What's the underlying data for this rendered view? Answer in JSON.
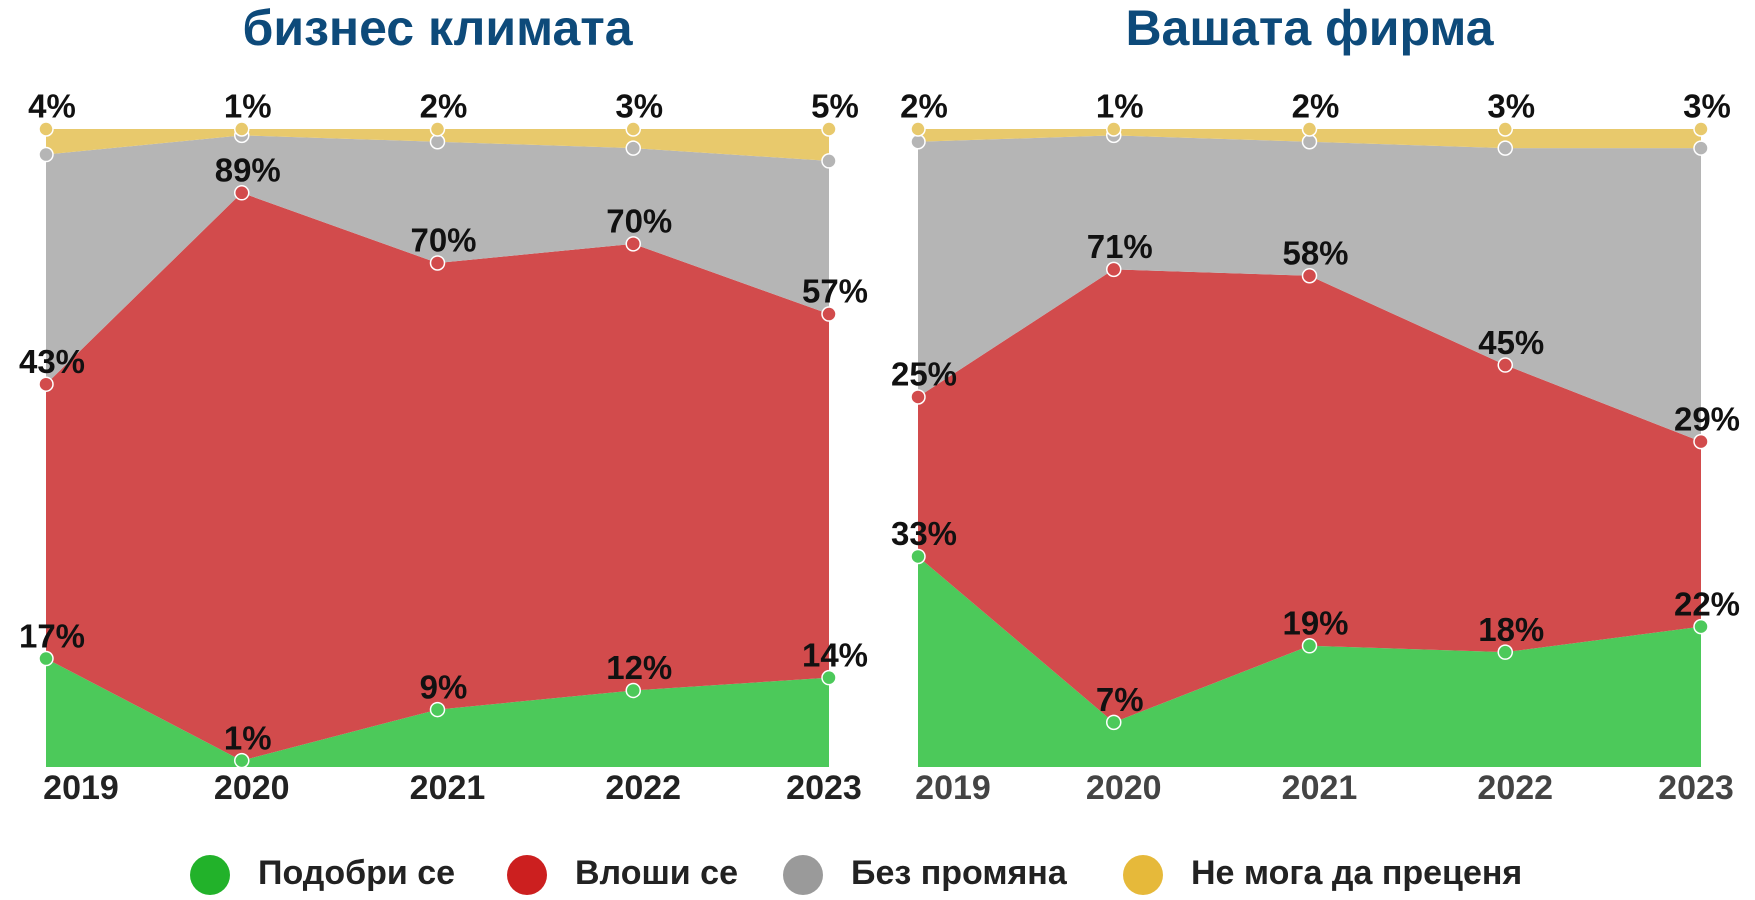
{
  "chart_data": [
    {
      "type": "stacked-area",
      "title": "бизнес климата",
      "categories": [
        "2019",
        "2020",
        "2021",
        "2022",
        "2023"
      ],
      "series": [
        {
          "name": "Подобри се",
          "color": "#4cc95a",
          "values": [
            17,
            1,
            9,
            12,
            14
          ],
          "value_labels": [
            "17%",
            "1%",
            "9%",
            "12%",
            "14%"
          ]
        },
        {
          "name": "Влоши се",
          "color": "#d24b4c",
          "values": [
            43,
            89,
            70,
            70,
            57
          ],
          "value_labels": [
            "43%",
            "89%",
            "70%",
            "70%",
            "57%"
          ]
        },
        {
          "name": "Без промяна",
          "color": "#b5b5b5",
          "values": [
            36,
            9,
            19,
            15,
            24
          ]
        },
        {
          "name": "Не мога да преценя",
          "color": "#e8c96c",
          "values": [
            4,
            1,
            2,
            3,
            5
          ],
          "value_labels": [
            "4%",
            "1%",
            "2%",
            "3%",
            "5%"
          ]
        }
      ]
    },
    {
      "type": "stacked-area",
      "title": "Вашата фирма",
      "categories": [
        "2019",
        "2020",
        "2021",
        "2022",
        "2023"
      ],
      "series": [
        {
          "name": "Подобри се",
          "color": "#4cc95a",
          "values": [
            33,
            7,
            19,
            18,
            22
          ],
          "value_labels": [
            "33%",
            "7%",
            "19%",
            "18%",
            "22%"
          ]
        },
        {
          "name": "Влоши се",
          "color": "#d24b4c",
          "values": [
            25,
            71,
            58,
            45,
            29
          ],
          "value_labels": [
            "25%",
            "71%",
            "58%",
            "45%",
            "29%"
          ]
        },
        {
          "name": "Без промяна",
          "color": "#b5b5b5",
          "values": [
            40,
            21,
            21,
            34,
            46
          ]
        },
        {
          "name": "Не мога да преценя",
          "color": "#e8c96c",
          "values": [
            2,
            1,
            2,
            3,
            3
          ],
          "value_labels": [
            "2%",
            "1%",
            "2%",
            "3%",
            "3%"
          ]
        }
      ]
    }
  ]
}
